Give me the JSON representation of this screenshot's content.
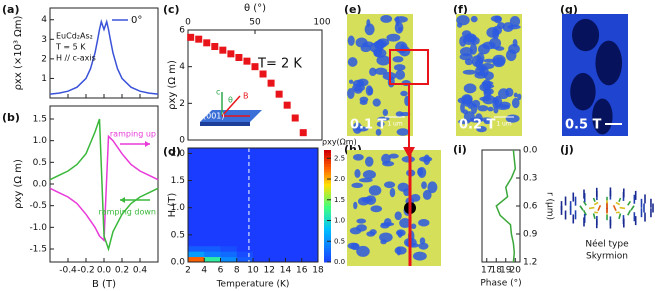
{
  "panel_labels": [
    "(a)",
    "(b)",
    "(c)",
    "(d)",
    "(e)",
    "(f)",
    "(g)",
    "(h)",
    "(i)",
    "(j)"
  ],
  "chart_data": [
    {
      "type": "line",
      "ylabel": "ρxx (×10³ Ωm)",
      "annotations": [
        "EuCd₂As₂",
        "T = 5 K",
        "H // c-axis"
      ],
      "x": [
        -0.6,
        -0.5,
        -0.4,
        -0.3,
        -0.2,
        -0.15,
        -0.1,
        -0.07,
        -0.05,
        -0.03,
        0,
        0.03,
        0.05,
        0.07,
        0.1,
        0.15,
        0.2,
        0.3,
        0.4,
        0.5,
        0.6
      ],
      "series": [
        {
          "name": "0°",
          "color": "#3a52d8",
          "values": [
            0.2,
            0.25,
            0.35,
            0.55,
            1.0,
            1.5,
            2.3,
            3.0,
            3.5,
            3.9,
            3.5,
            3.9,
            3.5,
            3.0,
            2.3,
            1.5,
            1.0,
            0.55,
            0.35,
            0.25,
            0.2
          ]
        }
      ],
      "xlim": [
        -0.6,
        0.6
      ],
      "xticks": [
        -0.4,
        -0.2,
        0,
        0.2,
        0.4
      ],
      "ylim": [
        0,
        4.6
      ],
      "yticks": [
        1,
        2,
        3,
        4
      ],
      "legend": "upper right"
    },
    {
      "type": "line",
      "xlabel": "B (T)",
      "ylabel": "ρxy (Ω m)",
      "x": [
        -0.6,
        -0.5,
        -0.4,
        -0.3,
        -0.2,
        -0.1,
        -0.05,
        0,
        0.05,
        0.1,
        0.2,
        0.3,
        0.4,
        0.5,
        0.6
      ],
      "series": [
        {
          "name": "ramping up",
          "color": "#e83ad8",
          "values": [
            -0.1,
            -0.2,
            -0.3,
            -0.45,
            -0.7,
            -1.0,
            -1.2,
            -1.3,
            1.1,
            1.0,
            0.7,
            0.45,
            0.3,
            0.2,
            0.1
          ]
        },
        {
          "name": "ramping down",
          "color": "#3ab83a",
          "values": [
            0.1,
            0.2,
            0.3,
            0.45,
            0.7,
            1.2,
            1.5,
            -1.2,
            -1.5,
            -1.1,
            -0.7,
            -0.45,
            -0.3,
            -0.2,
            -0.1
          ]
        }
      ],
      "xlim": [
        -0.6,
        0.6
      ],
      "xticks": [
        -0.4,
        -0.2,
        {
          "value": 0,
          "label": "0.0"
        },
        0.2,
        0.4
      ],
      "ylim": [
        -1.8,
        1.8
      ],
      "yticks": [
        -1.5,
        {
          "value": -1,
          "label": "-1.0"
        },
        -0.5,
        {
          "value": 0,
          "label": "0.0"
        },
        0.5,
        {
          "value": 1,
          "label": "1.0"
        },
        1.5
      ]
    },
    {
      "type": "scatter",
      "xlabel": "θ (°)",
      "ylabel": "ρxy (Ω m)",
      "annotation": "T= 2 K",
      "inset_labels": [
        "c",
        "θ",
        "B",
        "(001)"
      ],
      "x": [
        2,
        8,
        14,
        20,
        26,
        32,
        38,
        44,
        50,
        56,
        62,
        68,
        74,
        80,
        86
      ],
      "values": [
        5.6,
        5.5,
        5.3,
        5.1,
        4.9,
        4.7,
        4.5,
        4.3,
        4.0,
        3.6,
        3.1,
        2.5,
        1.9,
        1.2,
        0.4
      ],
      "color": "#e8141a",
      "xlim": [
        0,
        100
      ],
      "xticks": [
        0,
        50,
        100
      ],
      "ylim": [
        0,
        6
      ],
      "yticks": [
        0,
        2,
        4,
        6
      ]
    },
    {
      "type": "heatmap",
      "xlabel": "Temperature (K)",
      "ylabel": "H (T)",
      "x_edges": [
        2,
        4,
        6,
        8,
        10,
        12,
        14,
        16,
        18
      ],
      "y_edges": [
        0,
        0.1,
        0.2,
        0.3,
        2.1
      ],
      "z": [
        [
          2.3,
          1.2,
          0.5,
          0.2,
          0,
          0,
          0,
          0
        ],
        [
          0.6,
          0.4,
          0.3,
          0.1,
          0,
          0,
          0,
          0
        ],
        [
          0.2,
          0.2,
          0.1,
          0,
          0,
          0,
          0,
          0
        ],
        [
          0,
          0,
          0,
          0,
          0,
          0,
          0,
          0
        ]
      ],
      "xlim": [
        2,
        18
      ],
      "xticks": [
        2,
        4,
        6,
        8,
        10,
        12,
        14,
        16,
        18
      ],
      "ylim": [
        0,
        2.1
      ],
      "yticks": [
        {
          "value": 0,
          "label": "0.0"
        },
        0.5,
        {
          "value": 1,
          "label": "1.0"
        },
        1.5,
        {
          "value": 2,
          "label": "2.0"
        }
      ],
      "dashed_x": 9.5,
      "colorbar": {
        "label": "ρxy(Ωm)",
        "lim": [
          0,
          2.7
        ],
        "ticks": [
          {
            "value": 0,
            "label": "0.0"
          },
          0.5,
          {
            "value": 1,
            "label": "1.0"
          },
          1.5,
          {
            "value": 2,
            "label": "2.0"
          },
          2.5
        ]
      }
    },
    {
      "type": "line",
      "xlabel": "Phase (°)",
      "ylabel": "r (μm)",
      "r": [
        0,
        0.1,
        0.2,
        0.3,
        0.4,
        0.5,
        0.6,
        0.7,
        0.8,
        0.9,
        1.0,
        1.1,
        1.2
      ],
      "values": [
        19.8,
        19.9,
        20.0,
        19.6,
        19.0,
        19.2,
        18.0,
        18.4,
        19.5,
        19.6,
        19.8,
        19.9,
        19.8
      ],
      "color": "#3aa83a",
      "xlim": [
        16.5,
        20.5
      ],
      "xticks": [
        17,
        18,
        19,
        20
      ],
      "ylim": [
        0,
        1.2
      ],
      "y_inverted": true,
      "yticks": [
        {
          "value": 0,
          "label": "0.0"
        },
        0.3,
        0.6,
        0.9,
        1.2
      ]
    }
  ],
  "images": [
    {
      "label": "0.1 T",
      "scale_bar": "1 um"
    },
    {
      "label": "0.2 T",
      "scale_bar": "1 um"
    },
    {
      "label": "0.5 T"
    }
  ],
  "skyrmion": {
    "label": [
      "Néel type",
      "Skyrmion"
    ]
  }
}
